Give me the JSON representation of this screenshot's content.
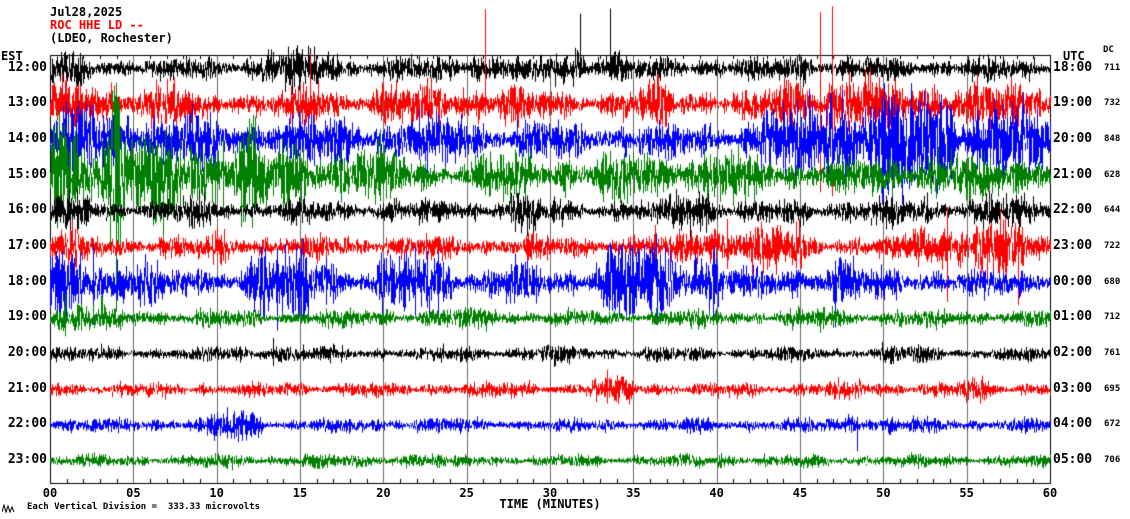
{
  "header": {
    "date": "Jul28,2025",
    "station_line": "ROC HHE LD --",
    "location_line": "(LDEO, Rochester)",
    "left_tz": "EST",
    "right_tz": "UTC",
    "dc_label": "DC"
  },
  "footer": {
    "x_axis_title": "TIME (MINUTES)",
    "scale_note": "Each Vertical Division =  333.33 microvolts"
  },
  "chart_data": {
    "type": "line",
    "subtype": "seismogram-helicorder",
    "title": "ROC HHE LD -- (LDEO, Rochester) Jul28,2025",
    "xlabel": "TIME (MINUTES)",
    "x_axis": {
      "min": 0,
      "max": 60,
      "tick_labels": [
        "00",
        "05",
        "10",
        "15",
        "20",
        "25",
        "30",
        "35",
        "40",
        "45",
        "50",
        "55",
        "60"
      ],
      "grid": true
    },
    "vertical_division_microvolts": 333.33,
    "representation": "procedural-noise; amp is typical half-amplitude in px, bursts are [startMin,endMin,gain], spikes are single vertical excursions at minute m with up/down extents in px",
    "rows": [
      {
        "est": "12:00",
        "utc": "18:00",
        "dc": "711",
        "color": "#000000",
        "amp": 7,
        "seed": 101,
        "bursts": [
          [
            0,
            2,
            0.5
          ],
          [
            13,
            17,
            0.8
          ],
          [
            24,
            27,
            0.5
          ],
          [
            30,
            34,
            0.7
          ],
          [
            44,
            46,
            0.4
          ]
        ],
        "spikes": [
          {
            "m": 31.8,
            "up": 55,
            "dn": 8
          },
          {
            "m": 33.6,
            "up": 60,
            "dn": 8
          },
          {
            "m": 14.3,
            "up": 22,
            "dn": 10
          }
        ]
      },
      {
        "est": "13:00",
        "utc": "19:00",
        "dc": "732",
        "color": "#ff0000",
        "amp": 9,
        "seed": 202,
        "bursts": [
          [
            0,
            8,
            0.5
          ],
          [
            15,
            16,
            0.6
          ],
          [
            20,
            28,
            0.4
          ],
          [
            36,
            37,
            0.5
          ],
          [
            44,
            49,
            1.1
          ],
          [
            50,
            60,
            0.7
          ]
        ],
        "spikes": [
          {
            "m": 15.6,
            "up": 50,
            "dn": 10
          },
          {
            "m": 26.1,
            "up": 95,
            "dn": 12
          },
          {
            "m": 46.2,
            "up": 92,
            "dn": 88
          },
          {
            "m": 46.9,
            "up": 98,
            "dn": 92
          },
          {
            "m": 48.9,
            "up": 35,
            "dn": 30
          },
          {
            "m": 36.4,
            "up": 30,
            "dn": 20
          }
        ]
      },
      {
        "est": "14:00",
        "utc": "20:00",
        "dc": "848",
        "color": "#0000ff",
        "amp": 11,
        "seed": 303,
        "bursts": [
          [
            0,
            10,
            0.7
          ],
          [
            12,
            18,
            0.35
          ],
          [
            20,
            25,
            0.4
          ],
          [
            43,
            60,
            1.0
          ],
          [
            46,
            54,
            0.7
          ]
        ],
        "spikes": [
          {
            "m": 44.8,
            "up": 40,
            "dn": 35
          },
          {
            "m": 47.5,
            "up": 50,
            "dn": 45
          },
          {
            "m": 50.3,
            "up": 42,
            "dn": 55
          },
          {
            "m": 53.4,
            "up": 38,
            "dn": 42
          },
          {
            "m": 57.2,
            "up": 35,
            "dn": 40
          }
        ]
      },
      {
        "est": "15:00",
        "utc": "21:00",
        "dc": "628",
        "color": "#008000",
        "amp": 11,
        "seed": 404,
        "bursts": [
          [
            0,
            4,
            2.2
          ],
          [
            4,
            12,
            1.4
          ],
          [
            12,
            20,
            0.7
          ],
          [
            26,
            31,
            0.3
          ],
          [
            33,
            42,
            0.45
          ],
          [
            50,
            60,
            0.35
          ]
        ],
        "spikes": [
          {
            "m": 1.6,
            "up": 42,
            "dn": 38
          },
          {
            "m": 7.8,
            "up": 36,
            "dn": 40
          },
          {
            "m": 10.4,
            "up": 38,
            "dn": 34
          }
        ]
      },
      {
        "est": "16:00",
        "utc": "22:00",
        "dc": "644",
        "color": "#000000",
        "amp": 7,
        "seed": 505,
        "bursts": [
          [
            0,
            2,
            0.7
          ],
          [
            8,
            9,
            0.4
          ],
          [
            27,
            29,
            0.6
          ],
          [
            37.5,
            39.5,
            1.1
          ],
          [
            47,
            60,
            0.35
          ]
        ],
        "spikes": [
          {
            "m": 38.4,
            "up": 8,
            "dn": 38
          },
          {
            "m": 28.1,
            "up": 18,
            "dn": 12
          }
        ]
      },
      {
        "est": "17:00",
        "utc": "23:00",
        "dc": "722",
        "color": "#ff0000",
        "amp": 7,
        "seed": 606,
        "bursts": [
          [
            0,
            1.5,
            0.8
          ],
          [
            10,
            11,
            0.4
          ],
          [
            38,
            45,
            1.0
          ],
          [
            52,
            58,
            1.6
          ]
        ],
        "spikes": [
          {
            "m": 36.3,
            "up": 22,
            "dn": 22
          },
          {
            "m": 40.6,
            "up": 28,
            "dn": 22
          },
          {
            "m": 53.8,
            "up": 40,
            "dn": 55
          },
          {
            "m": 58.1,
            "up": 12,
            "dn": 58
          }
        ]
      },
      {
        "est": "18:00",
        "utc": "00:00",
        "dc": "680",
        "color": "#0000ff",
        "amp": 9,
        "seed": 707,
        "bursts": [
          [
            0,
            6,
            1.1
          ],
          [
            12,
            17,
            1.3
          ],
          [
            20,
            24,
            0.9
          ],
          [
            27,
            29,
            0.5
          ],
          [
            33,
            40,
            1.5
          ],
          [
            46,
            48,
            0.6
          ]
        ],
        "spikes": [
          {
            "m": 2.6,
            "up": 38,
            "dn": 42
          },
          {
            "m": 13.6,
            "up": 34,
            "dn": 48
          },
          {
            "m": 15.2,
            "up": 44,
            "dn": 38
          },
          {
            "m": 21.9,
            "up": 36,
            "dn": 33
          },
          {
            "m": 23.3,
            "up": 30,
            "dn": 36
          },
          {
            "m": 36.6,
            "up": 28,
            "dn": 28
          },
          {
            "m": 47.1,
            "up": 22,
            "dn": 45
          }
        ]
      },
      {
        "est": "19:00",
        "utc": "01:00",
        "dc": "712",
        "color": "#008000",
        "amp": 5.5,
        "seed": 808,
        "bursts": [
          [
            0,
            3,
            0.8
          ],
          [
            25,
            27,
            0.4
          ],
          [
            45,
            47,
            0.35
          ]
        ],
        "spikes": [
          {
            "m": 0.9,
            "up": 24,
            "dn": 18
          }
        ]
      },
      {
        "est": "20:00",
        "utc": "02:00",
        "dc": "761",
        "color": "#000000",
        "amp": 4.5,
        "seed": 909,
        "bursts": [
          [
            13,
            14,
            0.8
          ],
          [
            30,
            31,
            0.5
          ],
          [
            50,
            52,
            0.3
          ]
        ],
        "spikes": [
          {
            "m": 13.4,
            "up": 16,
            "dn": 12
          }
        ]
      },
      {
        "est": "21:00",
        "utc": "03:00",
        "dc": "695",
        "color": "#ff0000",
        "amp": 4.5,
        "seed": 1010,
        "bursts": [
          [
            33,
            34.5,
            1.0
          ],
          [
            47,
            49,
            0.3
          ],
          [
            55,
            56.5,
            0.6
          ]
        ],
        "spikes": [
          {
            "m": 33.4,
            "up": 20,
            "dn": 14
          },
          {
            "m": 55.9,
            "up": 14,
            "dn": 10
          }
        ]
      },
      {
        "est": "22:00",
        "utc": "04:00",
        "dc": "672",
        "color": "#0000ff",
        "amp": 4.5,
        "seed": 1111,
        "bursts": [
          [
            10,
            12.5,
            1.0
          ],
          [
            21,
            23,
            0.3
          ],
          [
            48,
            49,
            0.8
          ]
        ],
        "spikes": [
          {
            "m": 10.6,
            "up": 18,
            "dn": 8
          },
          {
            "m": 48.4,
            "up": 8,
            "dn": 26
          }
        ]
      },
      {
        "est": "23:00",
        "utc": "05:00",
        "dc": "706",
        "color": "#008000",
        "amp": 4,
        "seed": 1212,
        "bursts": [
          [
            14,
            16,
            0.3
          ],
          [
            20,
            22,
            0.4
          ],
          [
            40,
            42,
            0.25
          ]
        ],
        "spikes": []
      }
    ]
  }
}
